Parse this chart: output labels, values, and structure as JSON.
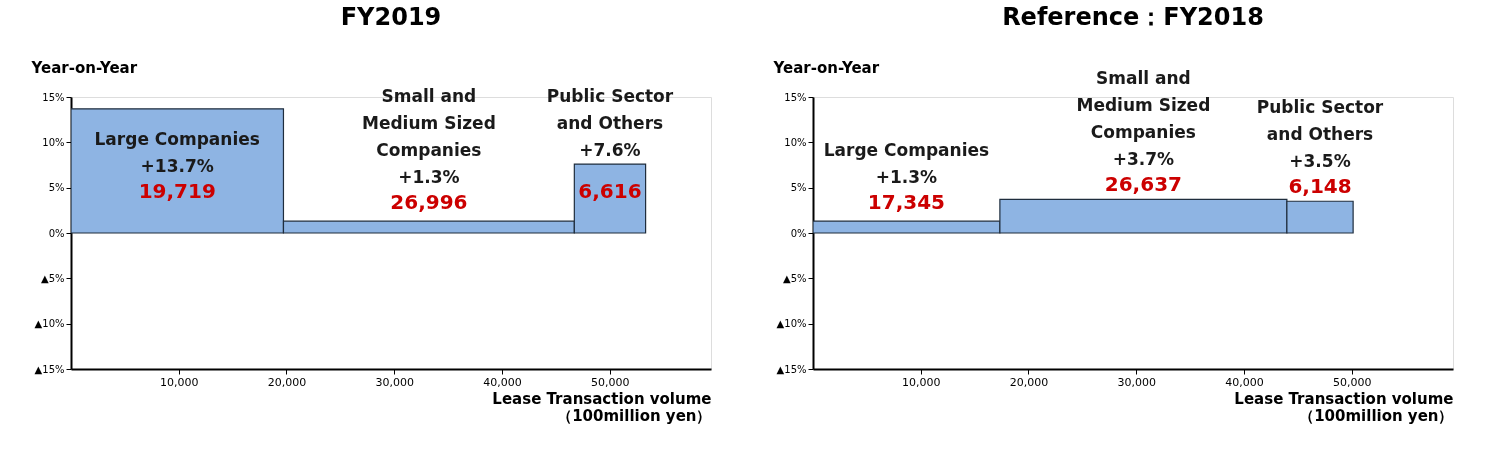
{
  "chart_data": [
    {
      "type": "histogram",
      "title": "FY2019",
      "ylabel": "Year-on-Year",
      "xlabel": "Lease Transaction volume\n（100million yen）",
      "bins": [
        0,
        19719,
        46715,
        53331
      ],
      "values": [
        13.7,
        1.3,
        7.6
      ],
      "color": "#8eb4e3",
      "xlim": [
        0,
        59400
      ],
      "xticks": [
        {
          "value": 10000,
          "label": "10,000"
        },
        {
          "value": 20000,
          "label": "20,000"
        },
        {
          "value": 30000,
          "label": "30,000"
        },
        {
          "value": 40000,
          "label": "40,000"
        },
        {
          "value": 50000,
          "label": "50,000"
        }
      ],
      "ylim": [
        -15,
        15
      ],
      "yticks": [
        {
          "value": 15,
          "label": "15%"
        },
        {
          "value": 10,
          "label": "10%"
        },
        {
          "value": 5,
          "label": "5%"
        },
        {
          "value": 0,
          "label": "0%"
        },
        {
          "value": -5,
          "label": "▲5%"
        },
        {
          "value": -10,
          "label": "▲10%"
        },
        {
          "value": -15,
          "label": "▲15%"
        }
      ],
      "grid": false,
      "annotations": [
        "Large Companies\n+13.7%",
        "Small and\nMedium Sized\nCompanies\n+1.3%",
        "Public Sector\nand Others\n+7.6%",
        "19,719",
        "26,996",
        "6,616"
      ]
    },
    {
      "type": "histogram",
      "title": "Reference：FY2018",
      "ylabel": "Year-on-Year",
      "xlabel": "Lease Transaction volume\n（100million yen）",
      "bins": [
        0,
        17345,
        43982,
        50130
      ],
      "values": [
        1.3,
        3.7,
        3.5
      ],
      "color": "#8eb4e3",
      "xlim": [
        0,
        59400
      ],
      "xticks": [
        {
          "value": 10000,
          "label": "10,000"
        },
        {
          "value": 20000,
          "label": "20,000"
        },
        {
          "value": 30000,
          "label": "30,000"
        },
        {
          "value": 40000,
          "label": "40,000"
        },
        {
          "value": 50000,
          "label": "50,000"
        }
      ],
      "ylim": [
        -15,
        15
      ],
      "yticks": [
        {
          "value": 15,
          "label": "15%"
        },
        {
          "value": 10,
          "label": "10%"
        },
        {
          "value": 5,
          "label": "5%"
        },
        {
          "value": 0,
          "label": "0%"
        },
        {
          "value": -5,
          "label": "▲5%"
        },
        {
          "value": -10,
          "label": "▲10%"
        },
        {
          "value": -15,
          "label": "▲15%"
        }
      ],
      "grid": false,
      "annotations": [
        "Large Companies\n+1.3%",
        "Small and\nMedium Sized\nCompanies\n+3.7%",
        "Public Sector\nand Others\n+3.5%",
        "17,345",
        "26,637",
        "6,148"
      ]
    }
  ]
}
